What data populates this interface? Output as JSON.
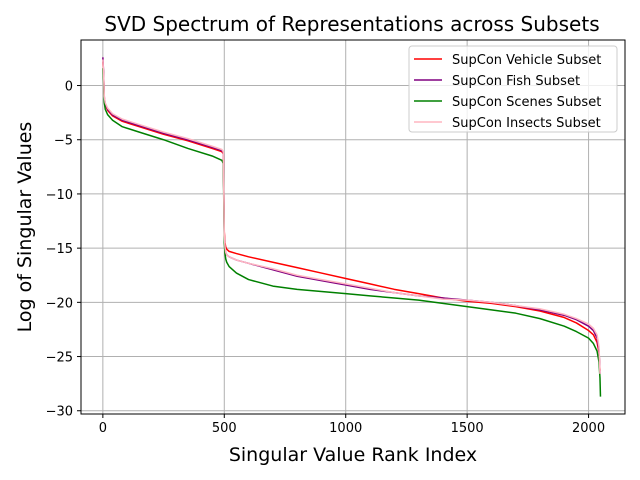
{
  "chart_data": {
    "type": "line",
    "title": "SVD Spectrum of Representations across Subsets",
    "xlabel": "Singular Value Rank Index",
    "ylabel": "Log of Singular Values",
    "xlim": [
      -90,
      2150
    ],
    "ylim": [
      -30.3,
      4.2
    ],
    "grid": true,
    "legend_position": "top-right",
    "x_ticks": [
      0,
      500,
      1000,
      1500,
      2000
    ],
    "x_tick_labels": [
      "0",
      "500",
      "1000",
      "1500",
      "2000"
    ],
    "y_ticks": [
      0,
      -5,
      -10,
      -15,
      -20,
      -25,
      -30
    ],
    "y_tick_labels": [
      "0",
      "−5",
      "−10",
      "−15",
      "−20",
      "−25",
      "−30"
    ],
    "series": [
      {
        "name": "SupCon Vehicle Subset",
        "color": "#ff0000",
        "x": [
          0,
          3,
          6,
          10,
          20,
          40,
          80,
          150,
          250,
          350,
          450,
          490,
          496,
          500,
          503,
          506,
          510,
          520,
          550,
          600,
          700,
          800,
          900,
          1000,
          1100,
          1200,
          1300,
          1400,
          1500,
          1600,
          1700,
          1800,
          1900,
          1950,
          2000,
          2020,
          2035,
          2043,
          2047
        ],
        "values": [
          2.2,
          1.0,
          -1.2,
          -1.8,
          -2.3,
          -2.8,
          -3.3,
          -3.8,
          -4.5,
          -5.1,
          -5.8,
          -6.1,
          -6.3,
          -13.5,
          -14.5,
          -14.9,
          -15.1,
          -15.3,
          -15.5,
          -15.8,
          -16.3,
          -16.8,
          -17.3,
          -17.8,
          -18.3,
          -18.8,
          -19.2,
          -19.6,
          -19.9,
          -20.1,
          -20.4,
          -20.8,
          -21.4,
          -21.9,
          -22.6,
          -23.0,
          -23.7,
          -24.6,
          -26.3
        ]
      },
      {
        "name": "SupCon Fish Subset",
        "color": "#800080",
        "x": [
          0,
          3,
          6,
          10,
          20,
          40,
          80,
          150,
          250,
          350,
          450,
          490,
          496,
          500,
          503,
          506,
          510,
          520,
          550,
          600,
          700,
          800,
          900,
          1000,
          1100,
          1200,
          1300,
          1400,
          1500,
          1600,
          1700,
          1800,
          1900,
          1950,
          2000,
          2020,
          2035,
          2043,
          2047
        ],
        "values": [
          2.6,
          1.2,
          -1.1,
          -1.7,
          -2.2,
          -2.7,
          -3.2,
          -3.7,
          -4.4,
          -5.0,
          -5.7,
          -6.0,
          -6.2,
          -14.0,
          -15.0,
          -15.4,
          -15.6,
          -15.8,
          -16.1,
          -16.4,
          -17.0,
          -17.6,
          -18.0,
          -18.4,
          -18.8,
          -19.1,
          -19.4,
          -19.6,
          -19.8,
          -20.0,
          -20.3,
          -20.7,
          -21.2,
          -21.6,
          -22.2,
          -22.6,
          -23.3,
          -24.4,
          -26.6
        ]
      },
      {
        "name": "SupCon Scenes Subset",
        "color": "#008000",
        "x": [
          0,
          3,
          6,
          10,
          20,
          40,
          80,
          150,
          250,
          350,
          450,
          490,
          496,
          500,
          503,
          506,
          510,
          520,
          550,
          600,
          700,
          800,
          900,
          1000,
          1100,
          1200,
          1300,
          1400,
          1500,
          1600,
          1700,
          1800,
          1900,
          1950,
          2000,
          2020,
          2035,
          2043,
          2047,
          2049
        ],
        "values": [
          1.6,
          0.4,
          -1.6,
          -2.2,
          -2.7,
          -3.2,
          -3.8,
          -4.3,
          -5.0,
          -5.8,
          -6.5,
          -6.9,
          -7.2,
          -14.5,
          -15.5,
          -16.0,
          -16.3,
          -16.7,
          -17.3,
          -17.9,
          -18.5,
          -18.8,
          -19.0,
          -19.2,
          -19.4,
          -19.6,
          -19.8,
          -20.1,
          -20.4,
          -20.7,
          -21.0,
          -21.5,
          -22.2,
          -22.7,
          -23.3,
          -23.8,
          -24.5,
          -25.5,
          -27.0,
          -28.7
        ]
      },
      {
        "name": "SupCon Insects Subset",
        "color": "#ffb6c1",
        "x": [
          0,
          3,
          6,
          10,
          20,
          40,
          80,
          150,
          250,
          350,
          450,
          490,
          496,
          500,
          503,
          506,
          510,
          520,
          550,
          600,
          700,
          800,
          900,
          1000,
          1100,
          1200,
          1300,
          1400,
          1500,
          1600,
          1700,
          1800,
          1900,
          1950,
          2000,
          2020,
          2035,
          2043,
          2047
        ],
        "values": [
          2.4,
          1.1,
          -1.0,
          -1.6,
          -2.1,
          -2.6,
          -3.1,
          -3.6,
          -4.3,
          -4.9,
          -5.6,
          -5.9,
          -6.1,
          -13.8,
          -14.9,
          -15.4,
          -15.6,
          -15.8,
          -16.1,
          -16.4,
          -16.9,
          -17.5,
          -17.9,
          -18.3,
          -18.7,
          -19.1,
          -19.4,
          -19.7,
          -19.8,
          -20.0,
          -20.3,
          -20.6,
          -21.1,
          -21.5,
          -22.0,
          -22.4,
          -23.0,
          -24.1,
          -26.6
        ]
      }
    ]
  }
}
